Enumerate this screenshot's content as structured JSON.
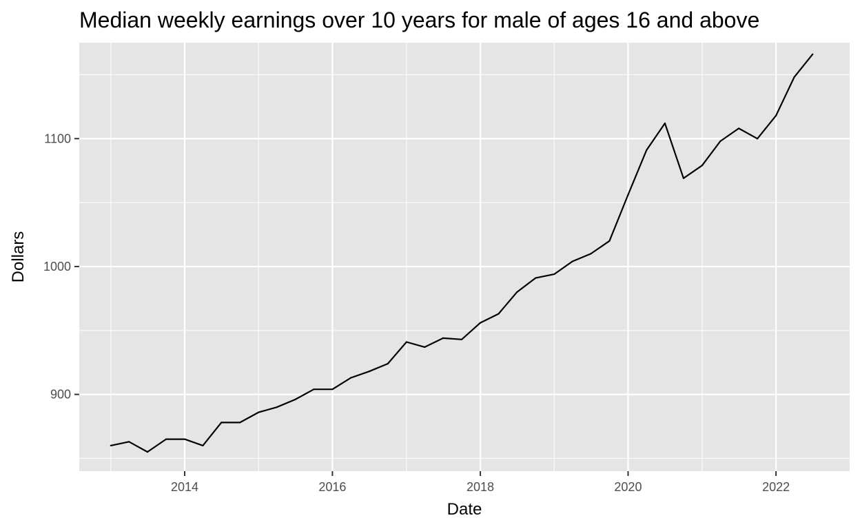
{
  "chart_data": {
    "type": "line",
    "title": "Median weekly earnings over 10 years for male of ages 16 and above",
    "xlabel": "Date",
    "ylabel": "Dollars",
    "x_ticks": [
      "2014",
      "2016",
      "2018",
      "2020",
      "2022"
    ],
    "y_ticks": [
      "900",
      "1000",
      "1100"
    ],
    "xlim": [
      "2012-07-29",
      "2022-12-31"
    ],
    "ylim": [
      840,
      1175
    ],
    "grid": true,
    "legend": "none",
    "colors": {
      "panel": "#e5e5e5",
      "grid": "#ffffff",
      "line": "#000000",
      "tick_text": "#4d4d4d"
    },
    "series": [
      {
        "x": [
          "2013-01-01",
          "2013-04-01",
          "2013-07-01",
          "2013-10-01",
          "2014-01-01",
          "2014-04-01",
          "2014-07-01",
          "2014-10-01",
          "2015-01-01",
          "2015-04-01",
          "2015-07-01",
          "2015-10-01",
          "2016-01-01",
          "2016-04-01",
          "2016-07-01",
          "2016-10-01",
          "2017-01-01",
          "2017-04-01",
          "2017-07-01",
          "2017-10-01",
          "2018-01-01",
          "2018-04-01",
          "2018-07-01",
          "2018-10-01",
          "2019-01-01",
          "2019-04-01",
          "2019-07-01",
          "2019-10-01",
          "2020-01-01",
          "2020-04-01",
          "2020-07-01",
          "2020-10-01",
          "2021-01-01",
          "2021-04-01",
          "2021-07-01",
          "2021-10-01",
          "2022-01-01",
          "2022-04-01",
          "2022-07-01"
        ],
        "values": [
          860,
          863,
          855,
          865,
          865,
          860,
          878,
          878,
          886,
          890,
          896,
          904,
          904,
          913,
          918,
          924,
          941,
          937,
          944,
          943,
          956,
          963,
          980,
          991,
          994,
          1004,
          1010,
          1020,
          1056,
          1091,
          1112,
          1069,
          1079,
          1098,
          1108,
          1100,
          1118,
          1148,
          1166
        ]
      }
    ]
  }
}
